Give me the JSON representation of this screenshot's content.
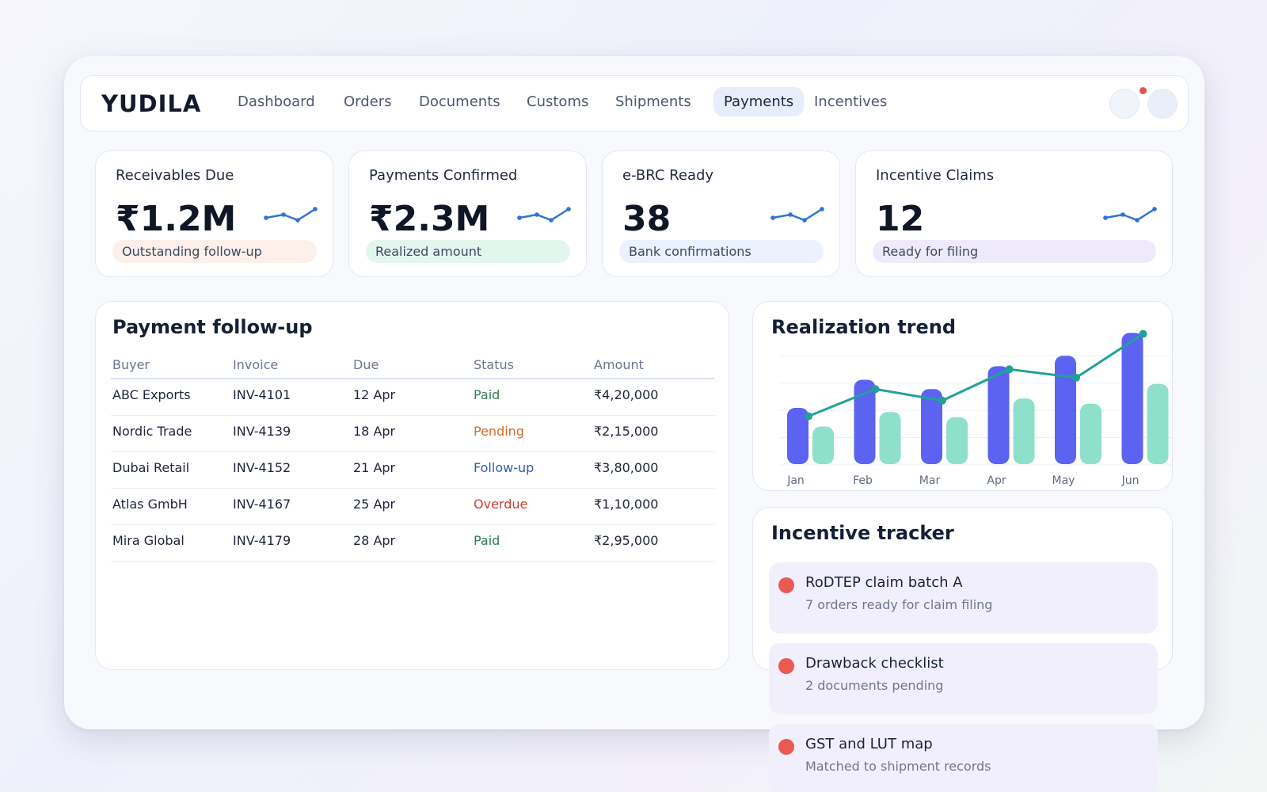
{
  "brand": "YUDILA",
  "nav": {
    "items": [
      {
        "label": "Dashboard"
      },
      {
        "label": "Orders"
      },
      {
        "label": "Documents"
      },
      {
        "label": "Customs"
      },
      {
        "label": "Shipments"
      },
      {
        "label": "Payments",
        "active": true
      },
      {
        "label": "Incentives"
      }
    ]
  },
  "kpis": [
    {
      "title": "Receivables Due",
      "value": "₹1.2M",
      "pill": "Outstanding follow-up",
      "pill_color": "#fdefe9"
    },
    {
      "title": "Payments Confirmed",
      "value": "₹2.3M",
      "pill": "Realized amount",
      "pill_color": "#e3f6ee"
    },
    {
      "title": "e-BRC Ready",
      "value": "38",
      "pill": "Bank confirmations",
      "pill_color": "#ebf1fd"
    },
    {
      "title": "Incentive Claims",
      "value": "12",
      "pill": "Ready for filing",
      "pill_color": "#efeafb"
    }
  ],
  "followup": {
    "title": "Payment follow-up",
    "columns": [
      "Buyer",
      "Invoice",
      "Due",
      "Status",
      "Amount"
    ],
    "rows": [
      {
        "buyer": "ABC Exports",
        "invoice": "INV-4101",
        "due": "12 Apr",
        "status": "Paid",
        "status_color": "#2e7d4f",
        "amount": "₹4,20,000"
      },
      {
        "buyer": "Nordic Trade",
        "invoice": "INV-4139",
        "due": "18 Apr",
        "status": "Pending",
        "status_color": "#d86a26",
        "amount": "₹2,15,000"
      },
      {
        "buyer": "Dubai Retail",
        "invoice": "INV-4152",
        "due": "21 Apr",
        "status": "Follow-up",
        "status_color": "#2f5db0",
        "amount": "₹3,80,000"
      },
      {
        "buyer": "Atlas GmbH",
        "invoice": "INV-4167",
        "due": "25 Apr",
        "status": "Overdue",
        "status_color": "#d63a32",
        "amount": "₹1,10,000"
      },
      {
        "buyer": "Mira Global",
        "invoice": "INV-4179",
        "due": "28 Apr",
        "status": "Paid",
        "status_color": "#2e7d4f",
        "amount": "₹2,95,000"
      }
    ]
  },
  "chart_data": {
    "type": "bar",
    "title": "Realization trend",
    "categories": [
      "Jan",
      "Feb",
      "Mar",
      "Apr",
      "May",
      "Jun"
    ],
    "series": [
      {
        "color": "#5b63f0",
        "values": [
          54,
          81,
          72,
          94,
          104,
          126
        ]
      },
      {
        "color": "#8ee0cb",
        "values": [
          36,
          50,
          45,
          63,
          58,
          77
        ]
      },
      {
        "type": "line",
        "color": "#22a19a",
        "values": [
          46,
          72,
          61,
          91,
          83,
          125
        ]
      }
    ],
    "ylim": [
      0,
      130
    ],
    "grid": true,
    "legend": "none"
  },
  "tracker": {
    "title": "Incentive tracker",
    "items": [
      {
        "title": "RoDTEP claim batch A",
        "subtitle": "7 orders ready for claim filing"
      },
      {
        "title": "Drawback checklist",
        "subtitle": "2 documents pending"
      },
      {
        "title": "GST and LUT map",
        "subtitle": "Matched to shipment records"
      }
    ]
  },
  "colors": {
    "accent": "#5b63f0",
    "teal": "#22a19a",
    "sparkline": "#2f74d0",
    "notification": "#ea4f4f"
  }
}
